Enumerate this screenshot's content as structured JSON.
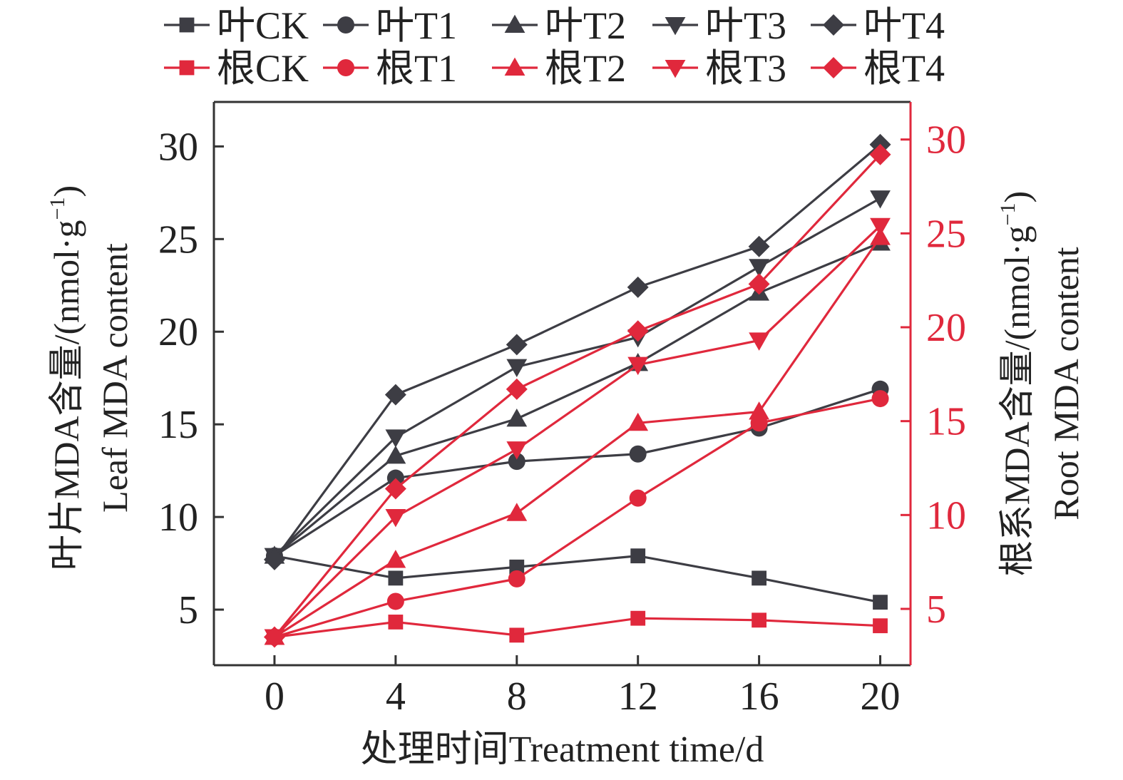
{
  "chart_data": {
    "type": "line",
    "x": [
      0,
      4,
      8,
      12,
      16,
      20
    ],
    "xlabel": "处理时间Treatment time/d",
    "xlim": [
      -2.0,
      21.0
    ],
    "xticks": [
      0,
      4,
      8,
      12,
      16,
      20
    ],
    "y_left": {
      "label_line1": "叶片MDA含量/(nmol·g",
      "label_sup": "−1",
      "label_close": ")",
      "label_line2": "Leaf MDA content",
      "lim": [
        2.0,
        32.4
      ],
      "ticks": [
        5,
        10,
        15,
        20,
        25,
        30
      ],
      "color": "#222222"
    },
    "y_right": {
      "label_line1": "根系MDA含量/(nmol·g",
      "label_sup": "−1",
      "label_close": ")",
      "label_line2": "Root MDA content",
      "lim": [
        2.0,
        32.0
      ],
      "ticks": [
        5,
        10,
        15,
        20,
        25,
        30
      ],
      "color": "#e0283c"
    },
    "series": [
      {
        "name": "叶CK",
        "axis": "left",
        "marker": "square",
        "color": "#3d3d44",
        "values": [
          7.9,
          6.7,
          7.3,
          7.9,
          6.7,
          5.4
        ]
      },
      {
        "name": "叶T1",
        "axis": "left",
        "marker": "circle",
        "color": "#3d3d44",
        "values": [
          7.9,
          12.1,
          13.0,
          13.4,
          14.8,
          16.9
        ]
      },
      {
        "name": "叶T2",
        "axis": "left",
        "marker": "triangle-up",
        "color": "#3d3d44",
        "values": [
          7.9,
          13.3,
          15.3,
          18.3,
          22.1,
          24.8
        ]
      },
      {
        "name": "叶T3",
        "axis": "left",
        "marker": "triangle-down",
        "color": "#3d3d44",
        "values": [
          7.9,
          14.3,
          18.1,
          19.7,
          23.5,
          27.2
        ]
      },
      {
        "name": "叶T4",
        "axis": "left",
        "marker": "diamond",
        "color": "#3d3d44",
        "values": [
          7.7,
          16.6,
          19.3,
          22.4,
          24.6,
          30.1
        ]
      },
      {
        "name": "根CK",
        "axis": "right",
        "marker": "square",
        "color": "#e0283c",
        "values": [
          3.5,
          4.3,
          3.6,
          4.5,
          4.4,
          4.1
        ]
      },
      {
        "name": "根T1",
        "axis": "right",
        "marker": "circle",
        "color": "#e0283c",
        "values": [
          3.5,
          5.4,
          6.6,
          10.9,
          14.9,
          16.2
        ]
      },
      {
        "name": "根T2",
        "axis": "right",
        "marker": "triangle-up",
        "color": "#e0283c",
        "values": [
          3.5,
          7.6,
          10.1,
          14.9,
          15.5,
          24.8
        ]
      },
      {
        "name": "根T3",
        "axis": "right",
        "marker": "triangle-down",
        "color": "#e0283c",
        "values": [
          3.5,
          9.9,
          13.5,
          18.0,
          19.3,
          25.4
        ]
      },
      {
        "name": "根T4",
        "axis": "right",
        "marker": "diamond",
        "color": "#e0283c",
        "values": [
          3.5,
          11.4,
          16.7,
          19.8,
          22.3,
          29.2
        ]
      }
    ],
    "legend_position": "top",
    "grid": false
  }
}
